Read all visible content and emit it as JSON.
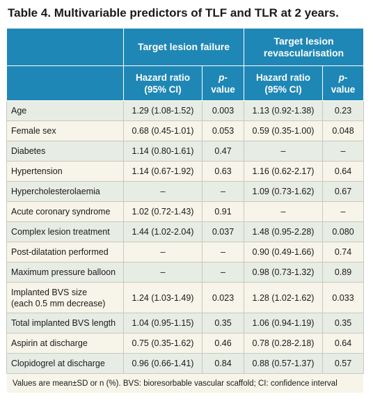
{
  "title": "Table 4. Multivariable predictors of TLF and TLR at 2 years.",
  "header": {
    "group1": "Target lesion failure",
    "group2_line1": "Target lesion",
    "group2_line2": "revascularisation",
    "hr_line1": "Hazard ratio",
    "hr_line2": "(95% CI)",
    "p_prefix": "p",
    "p_suffix": "-value"
  },
  "rows": [
    {
      "label": "Age",
      "tlf_hr": "1.29 (1.08-1.52)",
      "tlf_p": "0.003",
      "tlr_hr": "1.13 (0.92-1.38)",
      "tlr_p": "0.23"
    },
    {
      "label": "Female sex",
      "tlf_hr": "0.68 (0.45-1.01)",
      "tlf_p": "0.053",
      "tlr_hr": "0.59 (0.35-1.00)",
      "tlr_p": "0.048"
    },
    {
      "label": "Diabetes",
      "tlf_hr": "1.14 (0.80-1.61)",
      "tlf_p": "0.47",
      "tlr_hr": "–",
      "tlr_p": "–"
    },
    {
      "label": "Hypertension",
      "tlf_hr": "1.14 (0.67-1.92)",
      "tlf_p": "0.63",
      "tlr_hr": "1.16 (0.62-2.17)",
      "tlr_p": "0.64"
    },
    {
      "label": "Hypercholesterolaemia",
      "tlf_hr": "–",
      "tlf_p": "–",
      "tlr_hr": "1.09 (0.73-1.62)",
      "tlr_p": "0.67"
    },
    {
      "label": "Acute coronary syndrome",
      "tlf_hr": "1.02 (0.72-1.43)",
      "tlf_p": "0.91",
      "tlr_hr": "–",
      "tlr_p": "–"
    },
    {
      "label": "Complex lesion treatment",
      "tlf_hr": "1.44 (1.02-2.04)",
      "tlf_p": "0.037",
      "tlr_hr": "1.48 (0.95-2.28)",
      "tlr_p": "0.080"
    },
    {
      "label": "Post-dilatation performed",
      "tlf_hr": "–",
      "tlf_p": "–",
      "tlr_hr": "0.90 (0.49-1.66)",
      "tlr_p": "0.74"
    },
    {
      "label": "Maximum pressure balloon",
      "tlf_hr": "–",
      "tlf_p": "–",
      "tlr_hr": "0.98 (0.73-1.32)",
      "tlr_p": "0.89"
    },
    {
      "label": "Implanted BVS size",
      "label2": "(each 0.5 mm decrease)",
      "tlf_hr": "1.24 (1.03-1.49)",
      "tlf_p": "0.023",
      "tlr_hr": "1.28 (1.02-1.62)",
      "tlr_p": "0.033"
    },
    {
      "label": "Total implanted BVS length",
      "tlf_hr": "1.04 (0.95-1.15)",
      "tlf_p": "0.35",
      "tlr_hr": "1.06 (0.94-1.19)",
      "tlr_p": "0.35"
    },
    {
      "label": "Aspirin at discharge",
      "tlf_hr": "0.75 (0.35-1.62)",
      "tlf_p": "0.46",
      "tlr_hr": "0.78 (0.28-2.18)",
      "tlr_p": "0.64"
    },
    {
      "label": "Clopidogrel at discharge",
      "tlf_hr": "0.96 (0.66-1.41)",
      "tlf_p": "0.84",
      "tlr_hr": "0.88 (0.57-1.37)",
      "tlr_p": "0.57"
    }
  ],
  "footnote": "Values are mean±SD or n (%). BVS: bioresorbable vascular scaffold; CI: confidence interval",
  "colors": {
    "header": "#1f87b5",
    "row_a": "#e7ece4",
    "row_b": "#f7f4e9"
  }
}
